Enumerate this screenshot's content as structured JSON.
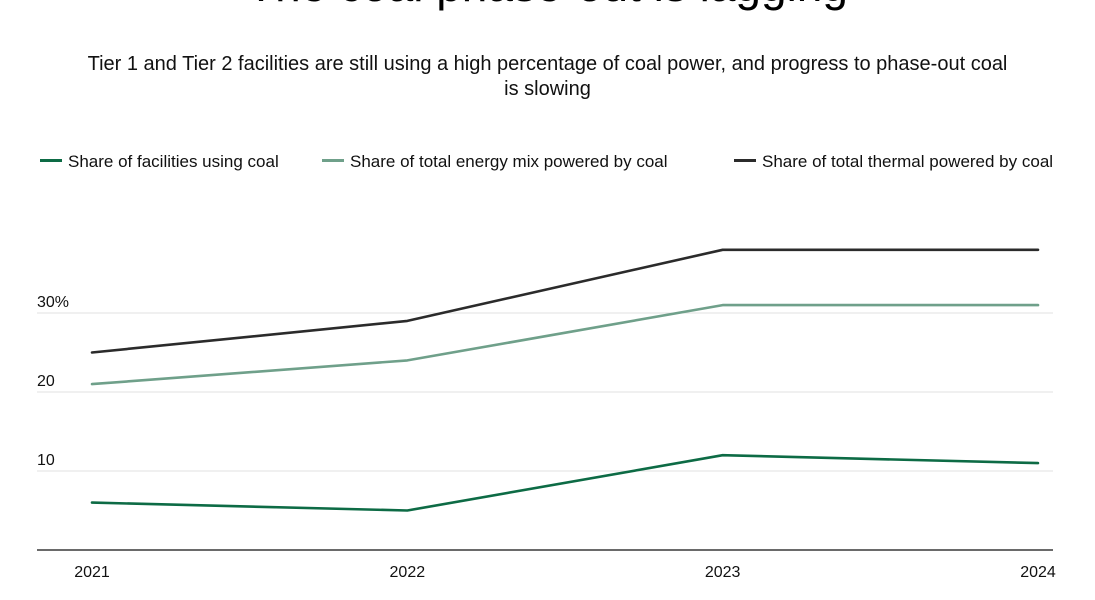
{
  "chart_data": {
    "type": "line",
    "title": "The coal phase-out is lagging",
    "subtitle": "Tier 1 and Tier 2 facilities are still using a high percentage of coal power, and progress to phase-out coal is slowing",
    "categories": [
      "2021",
      "2022",
      "2023",
      "2024"
    ],
    "series": [
      {
        "name": "Share of facilities using coal",
        "color": "#0d6b45",
        "values": [
          6,
          5,
          12,
          11
        ]
      },
      {
        "name": "Share of total energy mix powered by coal",
        "color": "#6fa08a",
        "values": [
          21,
          24,
          31,
          31
        ]
      },
      {
        "name": "Share of total thermal powered by coal",
        "color": "#2b2b2b",
        "values": [
          25,
          29,
          38,
          38
        ]
      }
    ],
    "y_ticks": [
      {
        "value": 10,
        "label": "10"
      },
      {
        "value": 20,
        "label": "20"
      },
      {
        "value": 30,
        "label": "30%"
      }
    ],
    "ylim": [
      0,
      40
    ],
    "grid": true,
    "legend_position": "top"
  }
}
